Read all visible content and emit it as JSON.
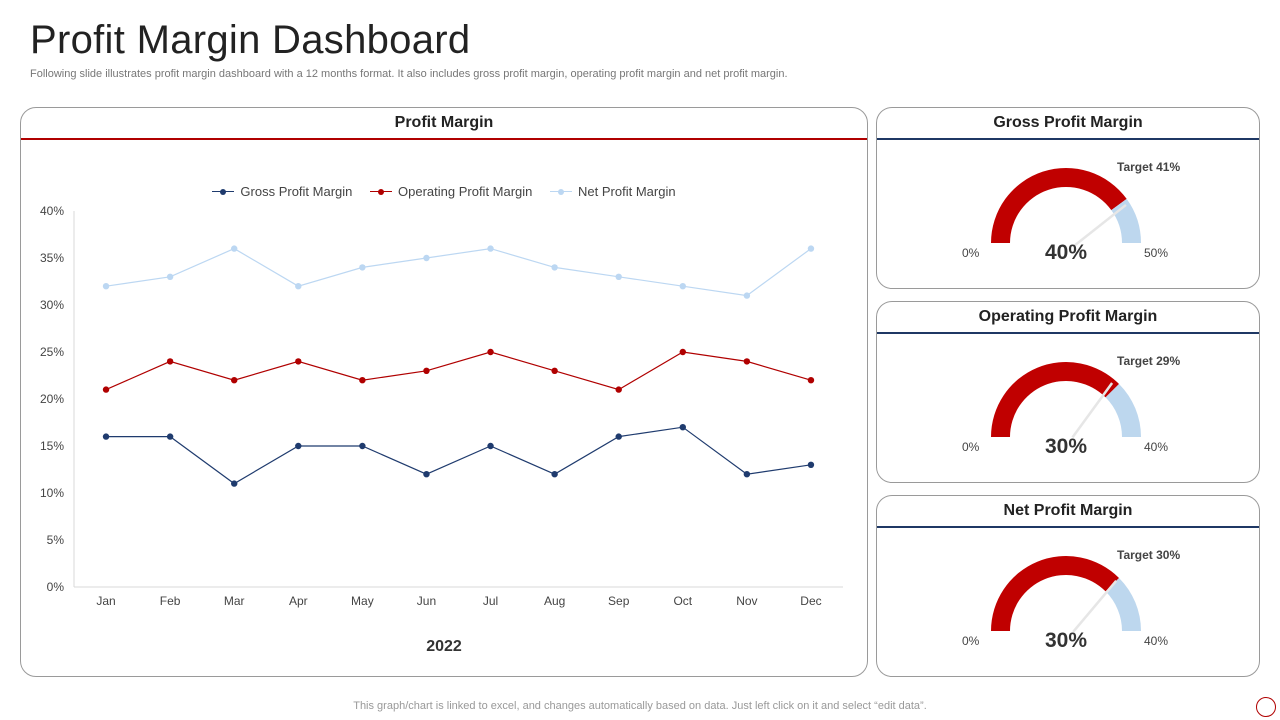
{
  "page": {
    "title": "Profit Margin Dashboard",
    "subtitle": "Following slide illustrates profit margin dashboard with a 12 months format. It also includes gross profit margin, operating profit margin and net profit margin.",
    "footer": "This graph/chart is linked to excel,  and changes automatically based on data. Just left click on it and select “edit data”."
  },
  "colors": {
    "gross": "#1f3b6e",
    "operating": "#b00000",
    "net": "#bcd7f2",
    "gauge_fill": "#c00000",
    "gauge_rest": "#bdd7ee",
    "accent_rule": "#b00000",
    "gauge_rule": "#1f3864"
  },
  "line_chart": {
    "title": "Profit Margin",
    "legend": [
      {
        "label": "Gross Profit Margin",
        "color": "#1f3b6e"
      },
      {
        "label": "Operating Profit Margin",
        "color": "#b00000"
      },
      {
        "label": "Net Profit Margin",
        "color": "#bcd7f2"
      }
    ]
  },
  "chart_data": [
    {
      "type": "line",
      "title": "Profit Margin",
      "xlabel": "2022",
      "ylabel": "",
      "categories": [
        "Jan",
        "Feb",
        "Mar",
        "Apr",
        "May",
        "Jun",
        "Jul",
        "Aug",
        "Sep",
        "Oct",
        "Nov",
        "Dec"
      ],
      "series": [
        {
          "name": "Gross Profit Margin",
          "values": [
            16,
            16,
            11,
            15,
            15,
            12,
            15,
            12,
            16,
            17,
            12,
            13
          ]
        },
        {
          "name": "Operating Profit Margin",
          "values": [
            21,
            24,
            22,
            24,
            22,
            23,
            25,
            23,
            21,
            25,
            24,
            22
          ]
        },
        {
          "name": "Net Profit Margin",
          "values": [
            32,
            33,
            36,
            32,
            34,
            35,
            36,
            34,
            33,
            32,
            31,
            36
          ]
        }
      ],
      "ylim": [
        0,
        40
      ],
      "yticks": [
        "0%",
        "5%",
        "10%",
        "15%",
        "20%",
        "25%",
        "30%",
        "35%",
        "40%"
      ],
      "legend_position": "top-center",
      "grid": false
    },
    {
      "type": "gauge",
      "title": "Gross Profit Margin",
      "value": 40,
      "value_label": "40%",
      "min": 0,
      "max": 50,
      "min_label": "0%",
      "max_label": "50%",
      "target": 41,
      "target_label": "Target 41%"
    },
    {
      "type": "gauge",
      "title": "Operating Profit Margin",
      "value": 30,
      "value_label": "30%",
      "min": 0,
      "max": 40,
      "min_label": "0%",
      "max_label": "40%",
      "target": 29,
      "target_label": "Target 29%"
    },
    {
      "type": "gauge",
      "title": "Net Profit Margin",
      "value": 30,
      "value_label": "30%",
      "min": 0,
      "max": 40,
      "min_label": "0%",
      "max_label": "40%",
      "target": 30,
      "target_label": "Target 30%"
    }
  ]
}
